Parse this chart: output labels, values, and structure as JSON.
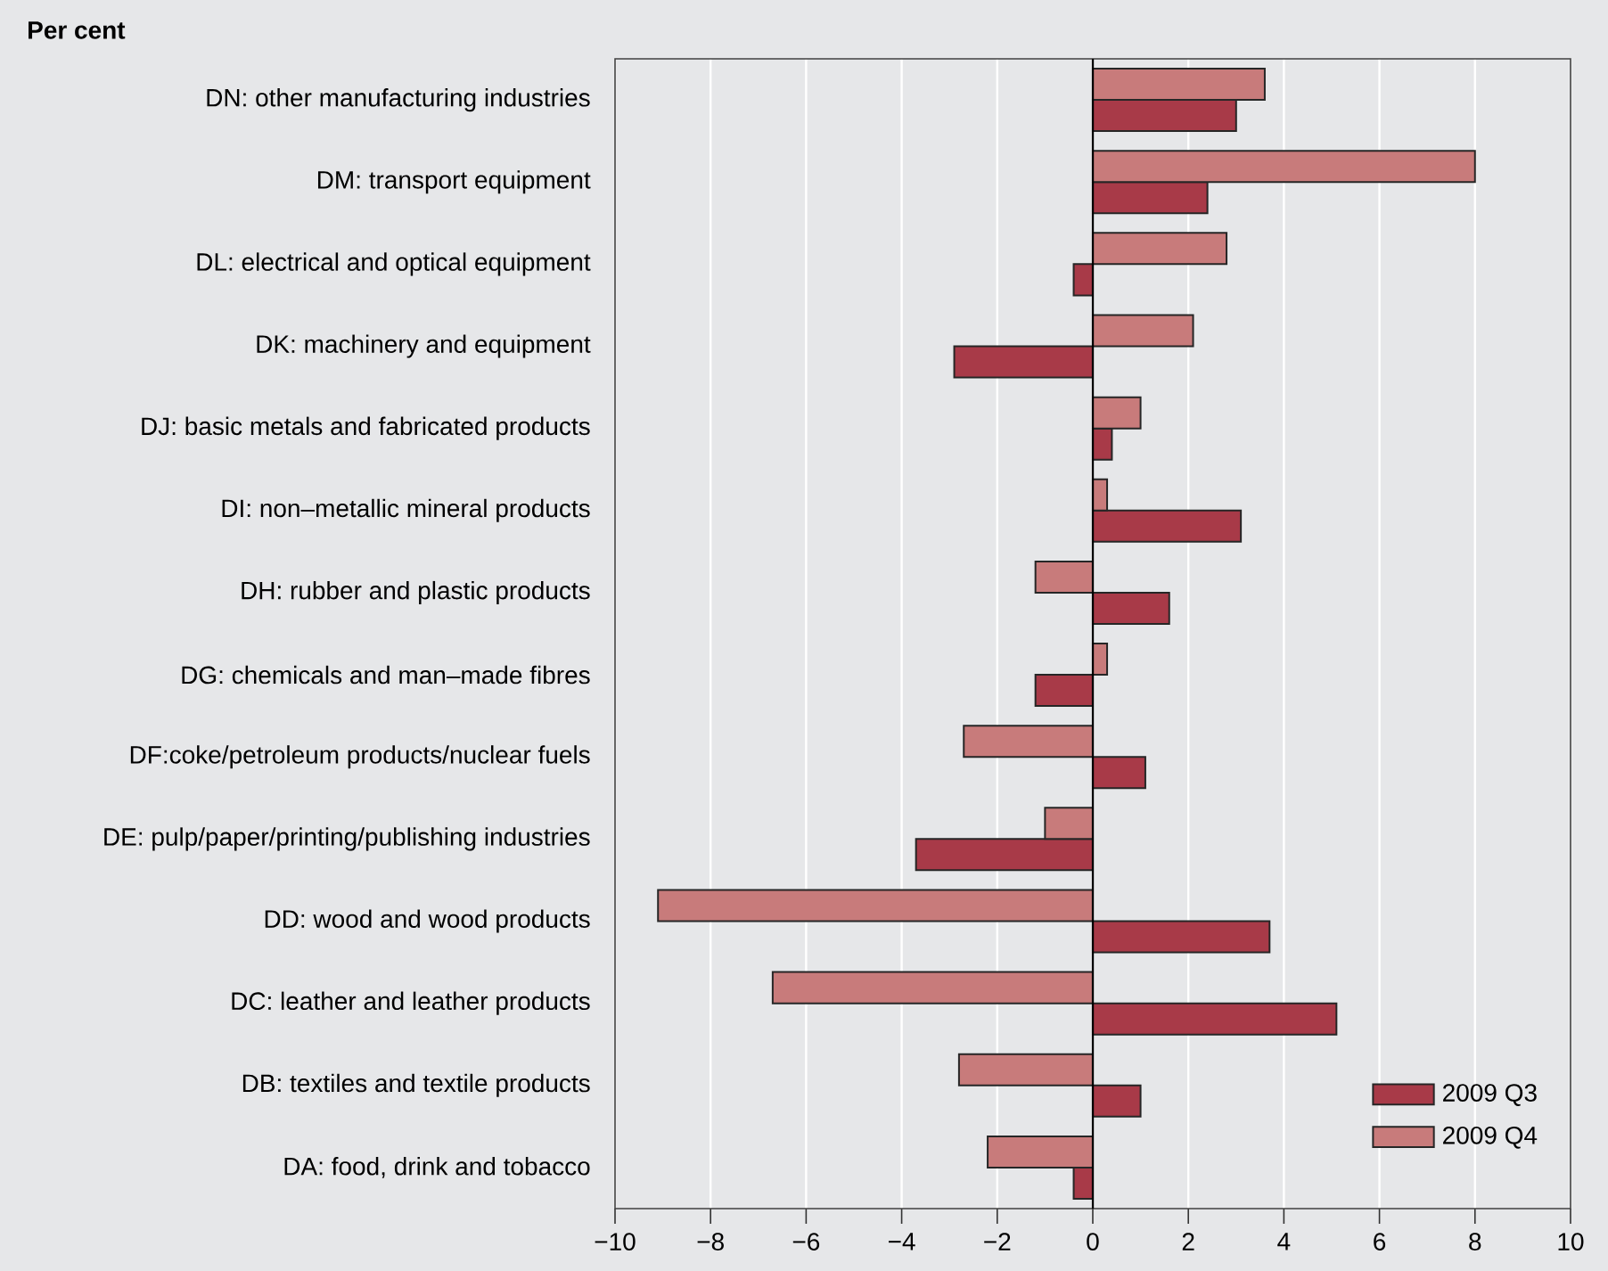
{
  "chart_data": {
    "type": "bar",
    "orientation": "horizontal",
    "title": "Per cent",
    "categories": [
      "DN: other manufacturing industries",
      "DM: transport equipment",
      "DL: electrical and optical equipment",
      "DK: machinery and equipment",
      "DJ: basic metals and fabricated products",
      "DI: non–metallic mineral products",
      "DH: rubber and plastic products",
      "DG: chemicals and man–made fibres",
      "DF:coke/petroleum products/nuclear fuels",
      "DE: pulp/paper/printing/publishing industries",
      "DD: wood and wood products",
      "DC: leather and leather products",
      "DB: textiles and textile products",
      "DA: food, drink and tobacco"
    ],
    "series": [
      {
        "name": "2009 Q3",
        "color": "#a83a48",
        "values": [
          3.0,
          2.4,
          -0.4,
          -2.9,
          0.4,
          3.1,
          1.6,
          -1.2,
          1.1,
          -3.7,
          3.7,
          5.1,
          1.0,
          -0.4
        ]
      },
      {
        "name": "2009 Q4",
        "color": "#c87b7b",
        "values": [
          3.6,
          8.0,
          2.8,
          2.1,
          1.0,
          0.3,
          -1.2,
          0.3,
          -2.7,
          -1.0,
          -9.1,
          -6.7,
          -2.8,
          -2.2
        ]
      }
    ],
    "xlim": [
      -10,
      10
    ],
    "xticks": [
      {
        "value": -10,
        "label": "−10"
      },
      {
        "value": -8,
        "label": "−8"
      },
      {
        "value": -6,
        "label": "−6"
      },
      {
        "value": -4,
        "label": "−4"
      },
      {
        "value": -2,
        "label": "−2"
      },
      0,
      2,
      4,
      6,
      8,
      10
    ],
    "grid": "x",
    "legend": "bottom right"
  }
}
